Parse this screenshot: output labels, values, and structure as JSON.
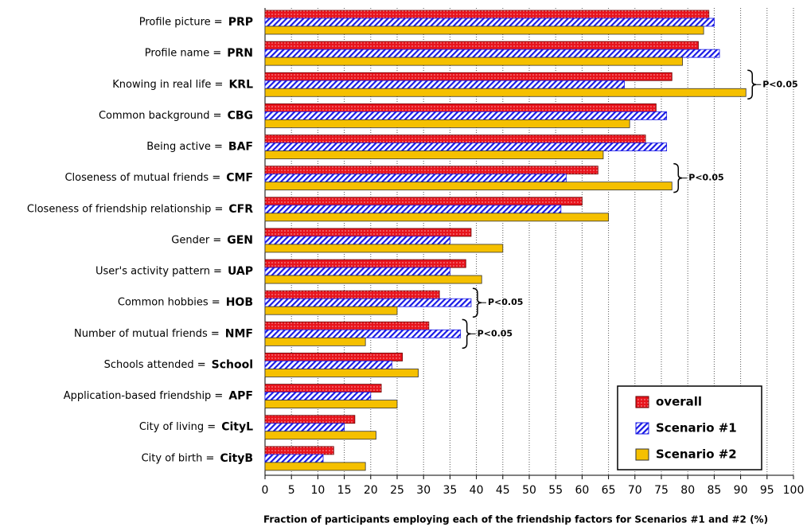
{
  "chart_data": {
    "type": "hbar",
    "x_label": "Fraction of participants employing each of the friendship factors for Scenarios #1 and #2 (%)",
    "categories": [
      "Profile picture =",
      "Profile name =",
      "Knowing in real life =",
      "Common background =",
      "Being active =",
      "Closeness of mutual friends =",
      "Closeness of friendship relationship =",
      "Gender =",
      "User's activity pattern =",
      "Common hobbies =",
      "Number of mutual friends =",
      "Schools attended =",
      "Application-based friendship =",
      "City of living =",
      "City of birth ="
    ],
    "abbreviations": [
      "PRP",
      "PRN",
      "KRL",
      "CBG",
      "BAF",
      "CMF",
      "CFR",
      "GEN",
      "UAP",
      "HOB",
      "NMF",
      "School",
      "APF",
      "CityL",
      "CityB"
    ],
    "annotations": [
      null,
      null,
      "P<0.05",
      null,
      null,
      "P<0.05",
      null,
      null,
      null,
      "P<0.05",
      "P<0.05",
      null,
      null,
      null,
      null
    ],
    "series": [
      {
        "name": "overall",
        "color": "#e8141c",
        "values": [
          84,
          82,
          77,
          74,
          72,
          63,
          60,
          39,
          38,
          33,
          31,
          26,
          22,
          17,
          13
        ]
      },
      {
        "name": "Scenario #1",
        "color": "#1a1ae6",
        "values": [
          85,
          86,
          68,
          76,
          76,
          57,
          56,
          35,
          35,
          39,
          37,
          24,
          20,
          15,
          11
        ]
      },
      {
        "name": "Scenario #2",
        "color": "#f5c000",
        "values": [
          83,
          79,
          91,
          69,
          64,
          77,
          65,
          45,
          41,
          25,
          19,
          29,
          25,
          21,
          19
        ]
      }
    ],
    "xlim": [
      0,
      100
    ],
    "xticks": [
      0,
      5,
      10,
      15,
      20,
      25,
      30,
      35,
      40,
      45,
      50,
      55,
      60,
      65,
      70,
      75,
      80,
      85,
      90,
      95,
      100
    ],
    "grid": true,
    "legend": "lower right"
  }
}
